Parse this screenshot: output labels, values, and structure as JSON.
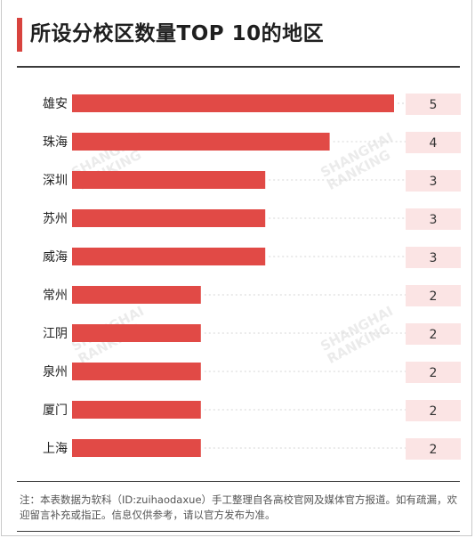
{
  "title": "所设分校区数量TOP 10的地区",
  "footnote": "注：本表数据为软科（ID:zuihaodaxue）手工整理自各高校官网及媒体官方报道。如有疏漏，欢迎留言补充或指正。信息仅供参考，请以官方发布为准。",
  "watermark": {
    "line1": "SHANGHAI",
    "line2": "RANKING"
  },
  "colors": {
    "bar": "#e14a46",
    "value_box": "#fbe4e4",
    "accent": "#d8433e"
  },
  "chart_data": {
    "type": "bar",
    "orientation": "horizontal",
    "title": "所设分校区数量TOP 10的地区",
    "categories": [
      "雄安",
      "珠海",
      "深圳",
      "苏州",
      "威海",
      "常州",
      "江阴",
      "泉州",
      "厦门",
      "上海"
    ],
    "values": [
      5,
      4,
      3,
      3,
      3,
      2,
      2,
      2,
      2,
      2
    ],
    "xlim": [
      0,
      5
    ],
    "grid": true,
    "data_labels": true
  }
}
